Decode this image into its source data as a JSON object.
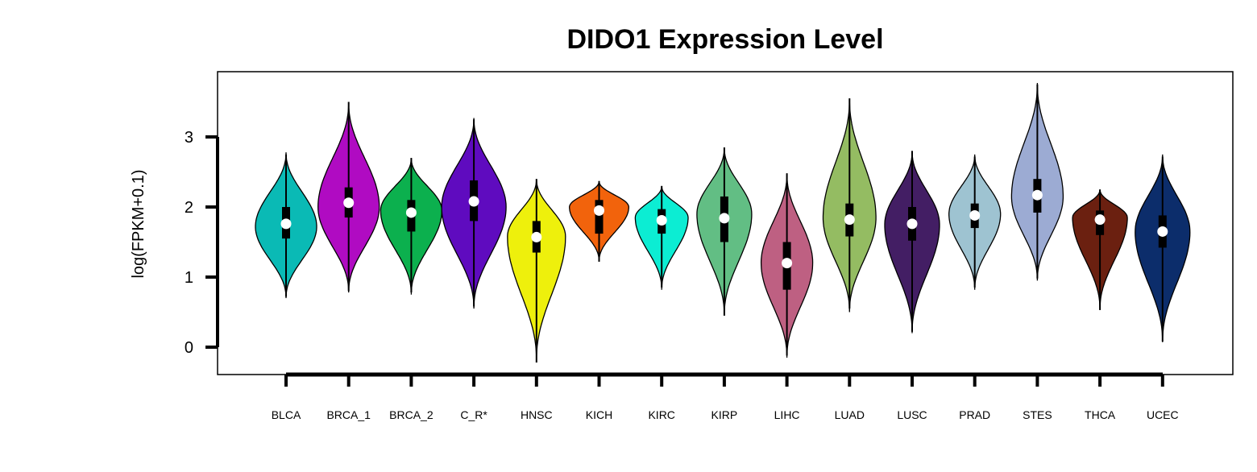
{
  "chart_data": {
    "type": "violin",
    "title": "DIDO1 Expression Level",
    "ylabel": "log(FPKM+0.1)",
    "xlabel": "",
    "ylim": [
      -0.4,
      3.9
    ],
    "yticks": [
      0,
      1,
      2,
      3
    ],
    "grid": false,
    "categories": [
      "BLCA",
      "BRCA_1",
      "BRCA_2",
      "C_R*",
      "HNSC",
      "KICH",
      "KIRC",
      "KIRP",
      "LIHC",
      "LUAD",
      "LUSC",
      "PRAD",
      "STES",
      "THCA",
      "UCEC"
    ],
    "colors": [
      "#0ABAB5",
      "#B00BC2",
      "#0CB04E",
      "#5F0BBF",
      "#EEF00C",
      "#F2630C",
      "#0CEDD3",
      "#62BE84",
      "#BE6082",
      "#94BC62",
      "#431E64",
      "#9EC3D1",
      "#9CABD3",
      "#6B2010",
      "#0C2D6B"
    ],
    "violins": [
      {
        "min": 0.7,
        "max": 2.78,
        "q1": 1.55,
        "median": 1.76,
        "q3": 2.0,
        "peak": 1.72,
        "maxw": 0.95,
        "whisker_low": 0.72,
        "whisker_high": 2.75
      },
      {
        "min": 0.78,
        "max": 3.5,
        "q1": 1.85,
        "median": 2.06,
        "q3": 2.28,
        "peak": 2.0,
        "maxw": 0.95,
        "whisker_low": 0.8,
        "whisker_high": 3.5
      },
      {
        "min": 0.75,
        "max": 2.7,
        "q1": 1.65,
        "median": 1.92,
        "q3": 2.1,
        "peak": 1.95,
        "maxw": 0.95,
        "whisker_low": 0.78,
        "whisker_high": 2.7
      },
      {
        "min": 0.55,
        "max": 3.27,
        "q1": 1.8,
        "median": 2.08,
        "q3": 2.38,
        "peak": 2.0,
        "maxw": 1.0,
        "whisker_low": 0.58,
        "whisker_high": 3.25
      },
      {
        "min": -0.2,
        "max": 2.4,
        "q1": 1.35,
        "median": 1.57,
        "q3": 1.8,
        "peak": 1.58,
        "maxw": 0.9,
        "whisker_low": -0.22,
        "whisker_high": 2.4
      },
      {
        "min": 1.22,
        "max": 2.37,
        "q1": 1.62,
        "median": 1.95,
        "q3": 2.1,
        "peak": 2.0,
        "maxw": 0.92,
        "whisker_low": 1.22,
        "whisker_high": 2.37
      },
      {
        "min": 0.82,
        "max": 2.3,
        "q1": 1.62,
        "median": 1.81,
        "q3": 1.97,
        "peak": 1.85,
        "maxw": 0.82,
        "whisker_low": 0.85,
        "whisker_high": 2.3
      },
      {
        "min": 0.45,
        "max": 2.85,
        "q1": 1.5,
        "median": 1.84,
        "q3": 2.15,
        "peak": 1.9,
        "maxw": 0.85,
        "whisker_low": 0.45,
        "whisker_high": 2.85
      },
      {
        "min": -0.15,
        "max": 2.48,
        "q1": 0.82,
        "median": 1.2,
        "q3": 1.5,
        "peak": 1.2,
        "maxw": 0.8,
        "whisker_low": -0.12,
        "whisker_high": 2.48
      },
      {
        "min": 0.5,
        "max": 3.55,
        "q1": 1.58,
        "median": 1.82,
        "q3": 2.05,
        "peak": 1.85,
        "maxw": 0.82,
        "whisker_low": 0.55,
        "whisker_high": 3.55
      },
      {
        "min": 0.2,
        "max": 2.8,
        "q1": 1.52,
        "median": 1.76,
        "q3": 2.0,
        "peak": 1.75,
        "maxw": 0.85,
        "whisker_low": 0.22,
        "whisker_high": 2.8
      },
      {
        "min": 0.82,
        "max": 2.75,
        "q1": 1.7,
        "median": 1.88,
        "q3": 2.05,
        "peak": 1.9,
        "maxw": 0.8,
        "whisker_low": 0.85,
        "whisker_high": 2.72
      },
      {
        "min": 0.95,
        "max": 3.77,
        "q1": 1.92,
        "median": 2.17,
        "q3": 2.4,
        "peak": 2.15,
        "maxw": 0.8,
        "whisker_low": 0.98,
        "whisker_high": 3.75
      },
      {
        "min": 0.53,
        "max": 2.25,
        "q1": 1.6,
        "median": 1.82,
        "q3": 1.95,
        "peak": 1.85,
        "maxw": 0.85,
        "whisker_low": 0.53,
        "whisker_high": 2.25
      },
      {
        "min": 0.07,
        "max": 2.75,
        "q1": 1.42,
        "median": 1.65,
        "q3": 1.88,
        "peak": 1.65,
        "maxw": 0.85,
        "whisker_low": 0.08,
        "whisker_high": 2.72
      }
    ]
  }
}
